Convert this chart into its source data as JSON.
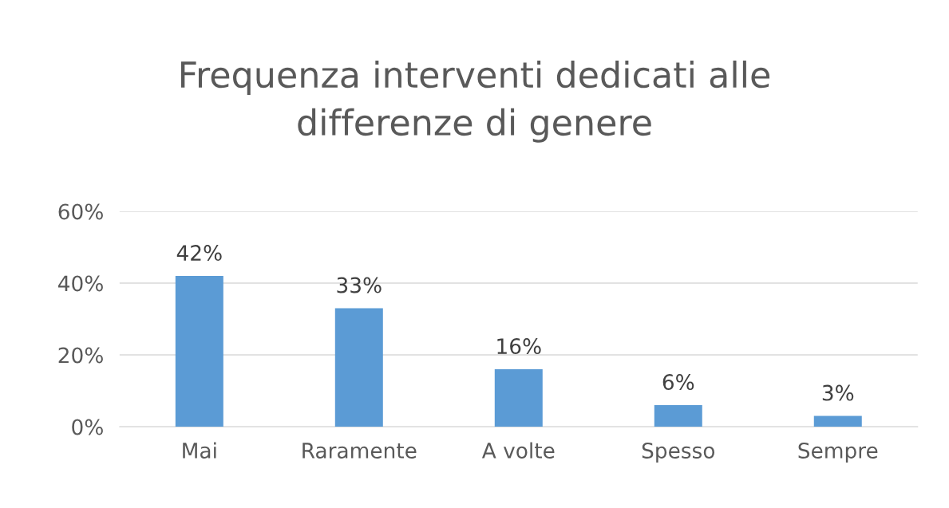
{
  "chart_data": {
    "type": "bar",
    "title": "Frequenza interventi dedicati alle\ndifferenze di genere",
    "categories": [
      "Mai",
      "Raramente",
      "A volte",
      "Spesso",
      "Sempre"
    ],
    "values": [
      42,
      33,
      16,
      6,
      3
    ],
    "value_labels": [
      "42%",
      "33%",
      "16%",
      "6%",
      "3%"
    ],
    "color": "#5b9bd5",
    "ylim": [
      0,
      60
    ],
    "yticks": [
      {
        "value": 0,
        "label": "0%"
      },
      {
        "value": 20,
        "label": "20%"
      },
      {
        "value": 40,
        "label": "40%"
      },
      {
        "value": 60,
        "label": "60%"
      }
    ],
    "grid": "y",
    "legend": false
  }
}
